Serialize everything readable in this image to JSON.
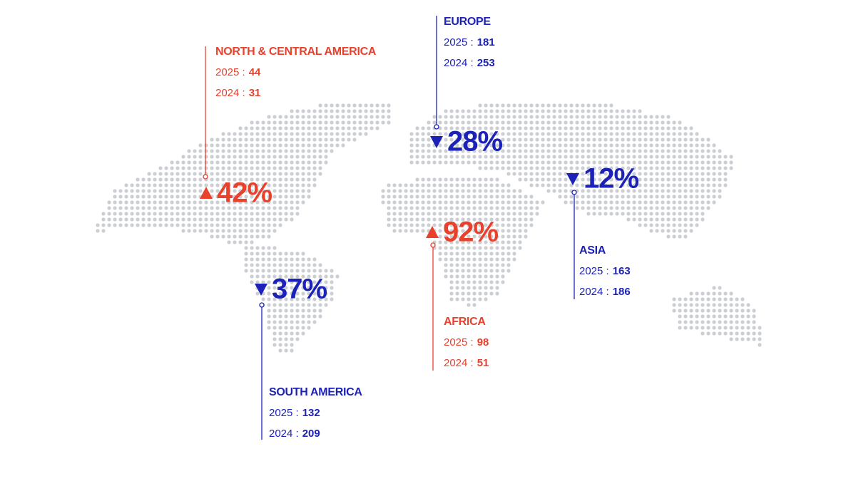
{
  "regions": [
    {
      "name": "NORTH & CENTRAL AMERICA",
      "trend": "up",
      "color": "#e8412c",
      "change": "42%",
      "rows": [
        {
          "label": "2025 :",
          "value": 44
        },
        {
          "label": "2024 :",
          "value": 31
        }
      ]
    },
    {
      "name": "EUROPE",
      "trend": "down",
      "color": "#1c22b8",
      "change": "28%",
      "rows": [
        {
          "label": "2025 :",
          "value": 181
        },
        {
          "label": "2024 :",
          "value": 253
        }
      ]
    },
    {
      "name": "ASIA",
      "trend": "down",
      "color": "#1c22b8",
      "change": "12%",
      "rows": [
        {
          "label": "2025 :",
          "value": 163
        },
        {
          "label": "2024 :",
          "value": 186
        }
      ]
    },
    {
      "name": "AFRICA",
      "trend": "up",
      "color": "#e8412c",
      "change": "92%",
      "rows": [
        {
          "label": "2025 :",
          "value": 98
        },
        {
          "label": "2024 :",
          "value": 51
        }
      ]
    },
    {
      "name": "SOUTH AMERICA",
      "trend": "down",
      "color": "#1c22b8",
      "change": "37%",
      "rows": [
        {
          "label": "2025 :",
          "value": 132
        },
        {
          "label": "2024 :",
          "value": 209
        }
      ]
    }
  ]
}
